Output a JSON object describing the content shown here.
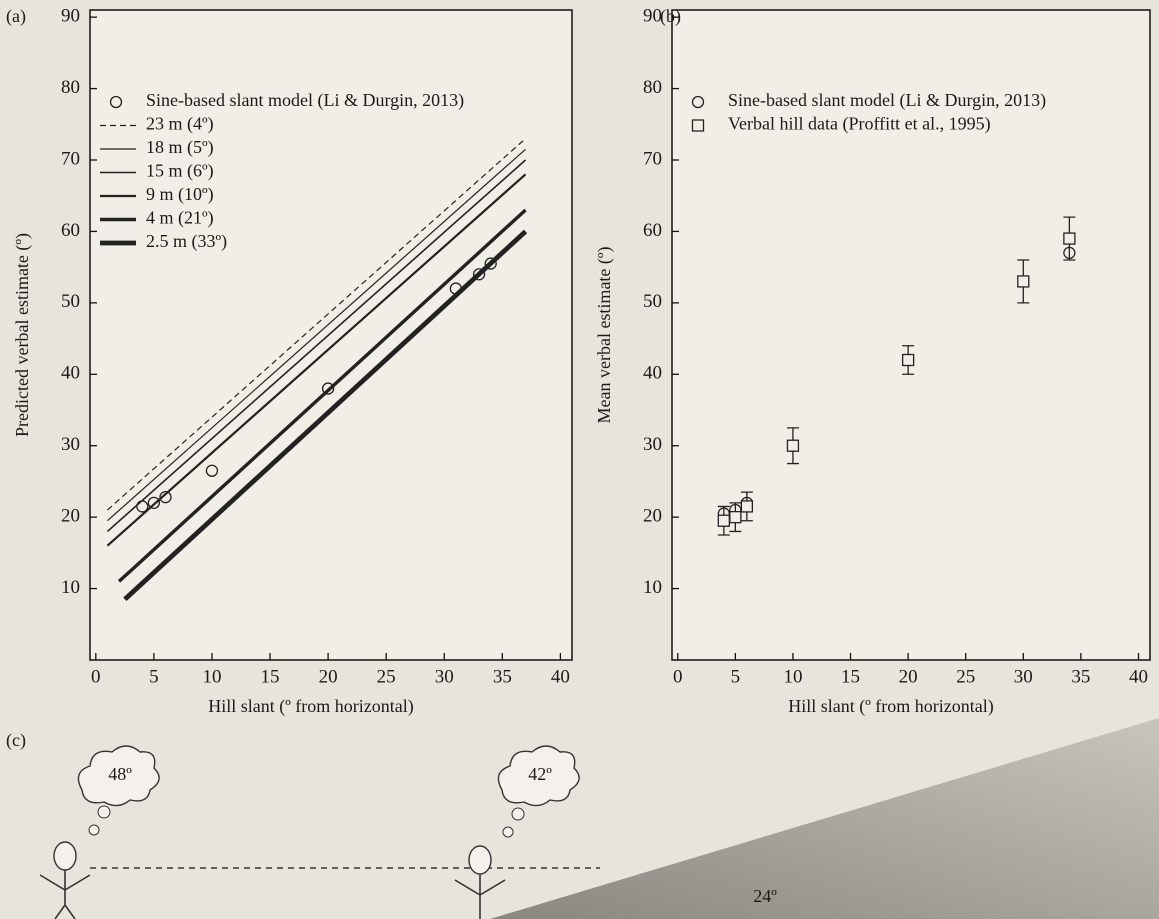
{
  "chart_data": [
    {
      "type": "line",
      "label": "(a)",
      "x_label": "Hill slant (º from horizontal)",
      "y_label": "Predicted verbal estimate (º)",
      "xlim": [
        -0.5,
        41
      ],
      "ylim": [
        0,
        91
      ],
      "xticks": [
        0,
        5,
        10,
        15,
        20,
        25,
        30,
        35,
        40
      ],
      "yticks": [
        10,
        20,
        30,
        40,
        50,
        60,
        70,
        80,
        90
      ],
      "legend": "upper left",
      "series": [
        {
          "name": "Sine-based slant model (Li & Durgin, 2013)",
          "marker": "circle",
          "color": "#222222",
          "x": [
            4,
            5,
            6,
            10,
            20,
            31,
            33,
            34
          ],
          "values": [
            21.5,
            22,
            22.8,
            26.5,
            38,
            52,
            54,
            55.5
          ]
        },
        {
          "name": "23 m (4º)",
          "dash": "dashed",
          "color": "#222222",
          "x": [
            1,
            37
          ],
          "values": [
            21,
            73
          ]
        },
        {
          "name": "18 m (5º)",
          "color": "#222222",
          "x": [
            1,
            37
          ],
          "values": [
            19.5,
            71.5
          ]
        },
        {
          "name": "15 m (6º)",
          "color": "#222222",
          "x": [
            1,
            37
          ],
          "values": [
            18,
            70
          ]
        },
        {
          "name": "9 m (10º)",
          "color": "#222222",
          "x": [
            1,
            37
          ],
          "values": [
            16,
            68
          ]
        },
        {
          "name": "4 m (21º)",
          "color": "#222222",
          "x": [
            2,
            37
          ],
          "values": [
            11,
            63
          ]
        },
        {
          "name": "2.5 m (33º)",
          "color": "#222222",
          "x": [
            2.5,
            37
          ],
          "values": [
            8.5,
            60
          ]
        }
      ]
    },
    {
      "type": "scatter",
      "label": "(b)",
      "x_label": "Hill slant (º from horizontal)",
      "y_label": "Mean verbal estimate (º)",
      "xlim": [
        -0.5,
        41
      ],
      "ylim": [
        0,
        91
      ],
      "xticks": [
        0,
        5,
        10,
        15,
        20,
        25,
        30,
        35,
        40
      ],
      "yticks": [
        10,
        20,
        30,
        40,
        50,
        60,
        70,
        80,
        90
      ],
      "legend": "upper left",
      "series": [
        {
          "name": "Sine-based slant model (Li & Durgin, 2013)",
          "marker": "circle",
          "color": "#222222",
          "x": [
            4,
            5,
            6,
            34
          ],
          "values": [
            20.5,
            21,
            22,
            57
          ]
        },
        {
          "name": "Verbal hill data (Proffitt et al., 1995)",
          "marker": "square",
          "color": "#222222",
          "x": [
            4,
            5,
            6,
            10,
            20,
            30,
            34
          ],
          "values": [
            19.5,
            20,
            21.5,
            30,
            42,
            53,
            59
          ],
          "errors": [
            2,
            2,
            2,
            2.5,
            2,
            3,
            3
          ]
        }
      ]
    }
  ],
  "diagram": {
    "label": "(c)",
    "thought_left": "48º",
    "thought_right": "42º",
    "slope_label": "24º"
  }
}
